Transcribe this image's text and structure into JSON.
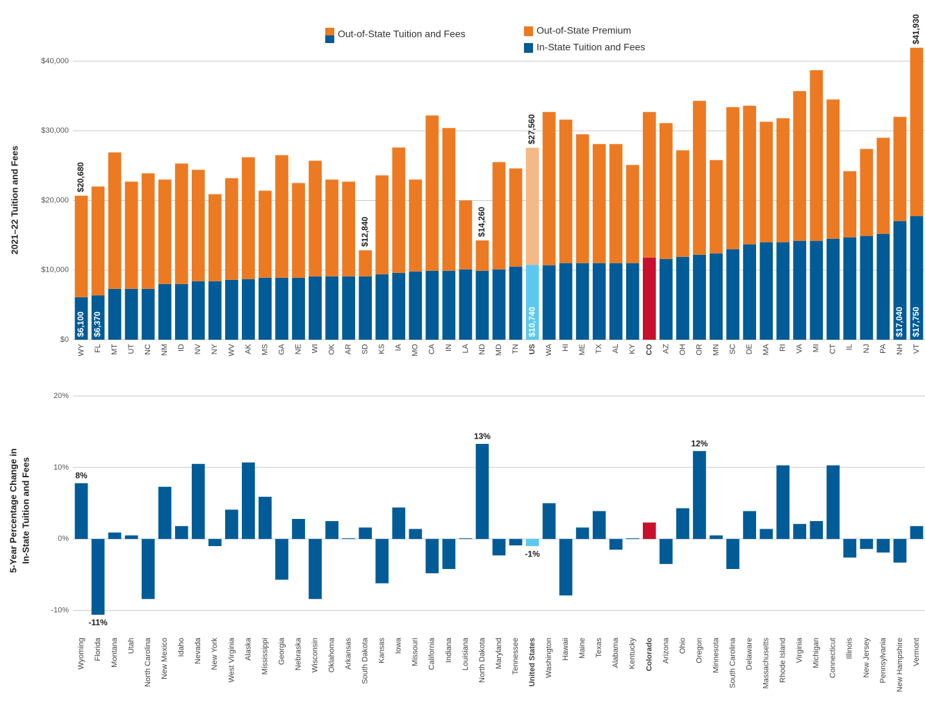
{
  "chart_data": [
    {
      "type": "stacked_bar",
      "y_label": "2021–22 Tuition and Fees",
      "categories": [
        "WY",
        "FL",
        "MT",
        "UT",
        "NC",
        "NM",
        "ID",
        "NV",
        "NY",
        "WV",
        "AK",
        "MS",
        "GA",
        "NE",
        "WI",
        "OK",
        "AR",
        "SD",
        "KS",
        "IA",
        "MO",
        "CA",
        "IN",
        "LA",
        "ND",
        "MD",
        "TN",
        "US",
        "WA",
        "HI",
        "ME",
        "TX",
        "AL",
        "KY",
        "CO",
        "AZ",
        "OH",
        "OR",
        "MN",
        "SC",
        "DE",
        "MA",
        "RI",
        "VA",
        "MI",
        "CT",
        "IL",
        "NJ",
        "PA",
        "NH",
        "VT"
      ],
      "ylim": [
        0,
        42000
      ],
      "yticks": [
        {
          "value": 0,
          "label": "$0"
        },
        {
          "value": 10000,
          "label": "$10,000"
        },
        {
          "value": 20000,
          "label": "$20,000"
        },
        {
          "value": 30000,
          "label": "$30,000"
        },
        {
          "value": 40000,
          "label": "$40,000"
        }
      ],
      "grid": true,
      "legend": true,
      "series": [
        {
          "name": "In-State Tuition and Fees",
          "color": "#005b96",
          "highlight": {
            "US": "#5bc8f0",
            "CO": "#c8102e"
          },
          "values": [
            6100,
            6370,
            7300,
            7300,
            7300,
            8000,
            8000,
            8400,
            8400,
            8600,
            8700,
            8900,
            8900,
            8900,
            9100,
            9100,
            9100,
            9100,
            9400,
            9600,
            9800,
            9900,
            9900,
            10100,
            9900,
            10100,
            10500,
            10740,
            10700,
            11000,
            11000,
            11000,
            11000,
            11000,
            11800,
            11600,
            11900,
            12200,
            12400,
            13000,
            13700,
            14000,
            14000,
            14200,
            14200,
            14500,
            14700,
            14900,
            15200,
            17040,
            17750
          ],
          "value_labels": [
            "$6,100",
            "$6,370",
            null,
            null,
            null,
            null,
            null,
            null,
            null,
            null,
            null,
            null,
            null,
            null,
            null,
            null,
            null,
            null,
            null,
            null,
            null,
            null,
            null,
            null,
            null,
            null,
            null,
            "$10,740",
            null,
            null,
            null,
            null,
            null,
            null,
            null,
            null,
            null,
            null,
            null,
            null,
            null,
            null,
            null,
            null,
            null,
            null,
            null,
            null,
            null,
            "$17,040",
            "$17,750"
          ]
        },
        {
          "name": "Out-of-State Premium",
          "color": "#ec7a23",
          "highlight": {
            "US": "#f5b887"
          },
          "values": [
            14580,
            15630,
            19600,
            15400,
            16600,
            15000,
            17300,
            16000,
            12500,
            14600,
            17500,
            12500,
            17600,
            13600,
            16600,
            13900,
            13600,
            3740,
            14200,
            18000,
            13200,
            22300,
            20500,
            9900,
            4360,
            15400,
            14100,
            16820,
            22000,
            20600,
            18500,
            17100,
            17100,
            14100,
            20900,
            19500,
            15300,
            22100,
            13400,
            20400,
            19900,
            17300,
            17800,
            21500,
            24500,
            20000,
            9500,
            12500,
            13800,
            14960,
            24180
          ]
        },
        {
          "name": "Out-of-State Tuition and Fees",
          "color": [
            "#ec7a23",
            "#005b96"
          ],
          "stack": false,
          "values": [
            20680,
            22000,
            26900,
            22700,
            23900,
            23000,
            25300,
            24400,
            20900,
            23200,
            26200,
            21400,
            26500,
            22500,
            25700,
            23000,
            22700,
            12840,
            23600,
            27600,
            23000,
            32200,
            30400,
            20000,
            14260,
            25500,
            24600,
            27560,
            32700,
            31600,
            29500,
            28100,
            28100,
            25100,
            32700,
            31100,
            27200,
            34300,
            25800,
            33400,
            33600,
            31300,
            31800,
            35700,
            38700,
            34500,
            24200,
            27400,
            29000,
            32000,
            41930
          ],
          "value_labels": [
            "$20,680",
            null,
            null,
            null,
            null,
            null,
            null,
            null,
            null,
            null,
            null,
            null,
            null,
            null,
            null,
            null,
            null,
            "$12,840",
            null,
            null,
            null,
            null,
            null,
            null,
            "$14,260",
            null,
            null,
            "$27,560",
            null,
            null,
            null,
            null,
            null,
            null,
            null,
            null,
            null,
            null,
            null,
            null,
            null,
            null,
            null,
            null,
            null,
            null,
            null,
            null,
            null,
            null,
            "$41,930"
          ]
        }
      ]
    },
    {
      "type": "bar",
      "y_label": [
        "5-Year Percentage Change in",
        "In-State Tuition and Fees"
      ],
      "categories": [
        "Wyoming",
        "Florida",
        "Montana",
        "Utah",
        "North Carolina",
        "New Mexico",
        "Idaho",
        "Nevada",
        "New York",
        "West Virginia",
        "Alaska",
        "Mississippi",
        "Georgia",
        "Nebraska",
        "Wisconsin",
        "Oklahoma",
        "Arkansas",
        "South Dakota",
        "Kansas",
        "Iowa",
        "Missouri",
        "California",
        "Indiana",
        "Louisiana",
        "North Dakota",
        "Maryland",
        "Tennessee",
        "United States",
        "Washington",
        "Hawaii",
        "Maine",
        "Texas",
        "Alabama",
        "Kentucky",
        "Colorado",
        "Arizona",
        "Ohio",
        "Oregon",
        "Minnesota",
        "South Carolina",
        "Delaware",
        "Massachusetts",
        "Rhode Island",
        "Virginia",
        "Michigan",
        "Connecticut",
        "Illinois",
        "New Jersey",
        "Pennsylvania",
        "New Hampshire",
        "Vermont"
      ],
      "ylim": [
        -11,
        20
      ],
      "yticks": [
        {
          "value": -10,
          "label": "-10%"
        },
        {
          "value": 0,
          "label": "0%"
        },
        {
          "value": 10,
          "label": "10%"
        },
        {
          "value": 20,
          "label": "20%"
        }
      ],
      "grid": true,
      "color": "#005b96",
      "highlight": {
        "United States": "#5bc8f0",
        "Colorado": "#c8102e"
      },
      "values": [
        7.8,
        -10.6,
        0.9,
        0.5,
        -8.4,
        7.3,
        1.8,
        10.5,
        -1.0,
        4.1,
        10.7,
        5.9,
        -5.7,
        2.8,
        -8.4,
        2.5,
        0.1,
        1.6,
        -6.2,
        4.4,
        1.4,
        -4.8,
        -4.2,
        0.1,
        13.3,
        -2.3,
        -0.9,
        -1.0,
        5.0,
        -7.9,
        1.6,
        3.9,
        -1.5,
        0.1,
        2.3,
        -3.5,
        4.3,
        12.3,
        0.5,
        -4.2,
        3.9,
        1.4,
        10.3,
        2.1,
        2.5,
        10.3,
        -2.6,
        -1.4,
        -1.9,
        -3.3,
        1.8
      ],
      "value_labels": [
        "8%",
        "-11%",
        null,
        null,
        null,
        null,
        null,
        null,
        null,
        null,
        null,
        null,
        null,
        null,
        null,
        null,
        null,
        null,
        null,
        null,
        null,
        null,
        null,
        null,
        "13%",
        null,
        null,
        "-1%",
        null,
        null,
        null,
        null,
        null,
        null,
        null,
        null,
        null,
        "12%",
        null,
        null,
        null,
        null,
        null,
        null,
        null,
        null,
        null,
        null,
        null,
        null,
        null
      ]
    }
  ]
}
